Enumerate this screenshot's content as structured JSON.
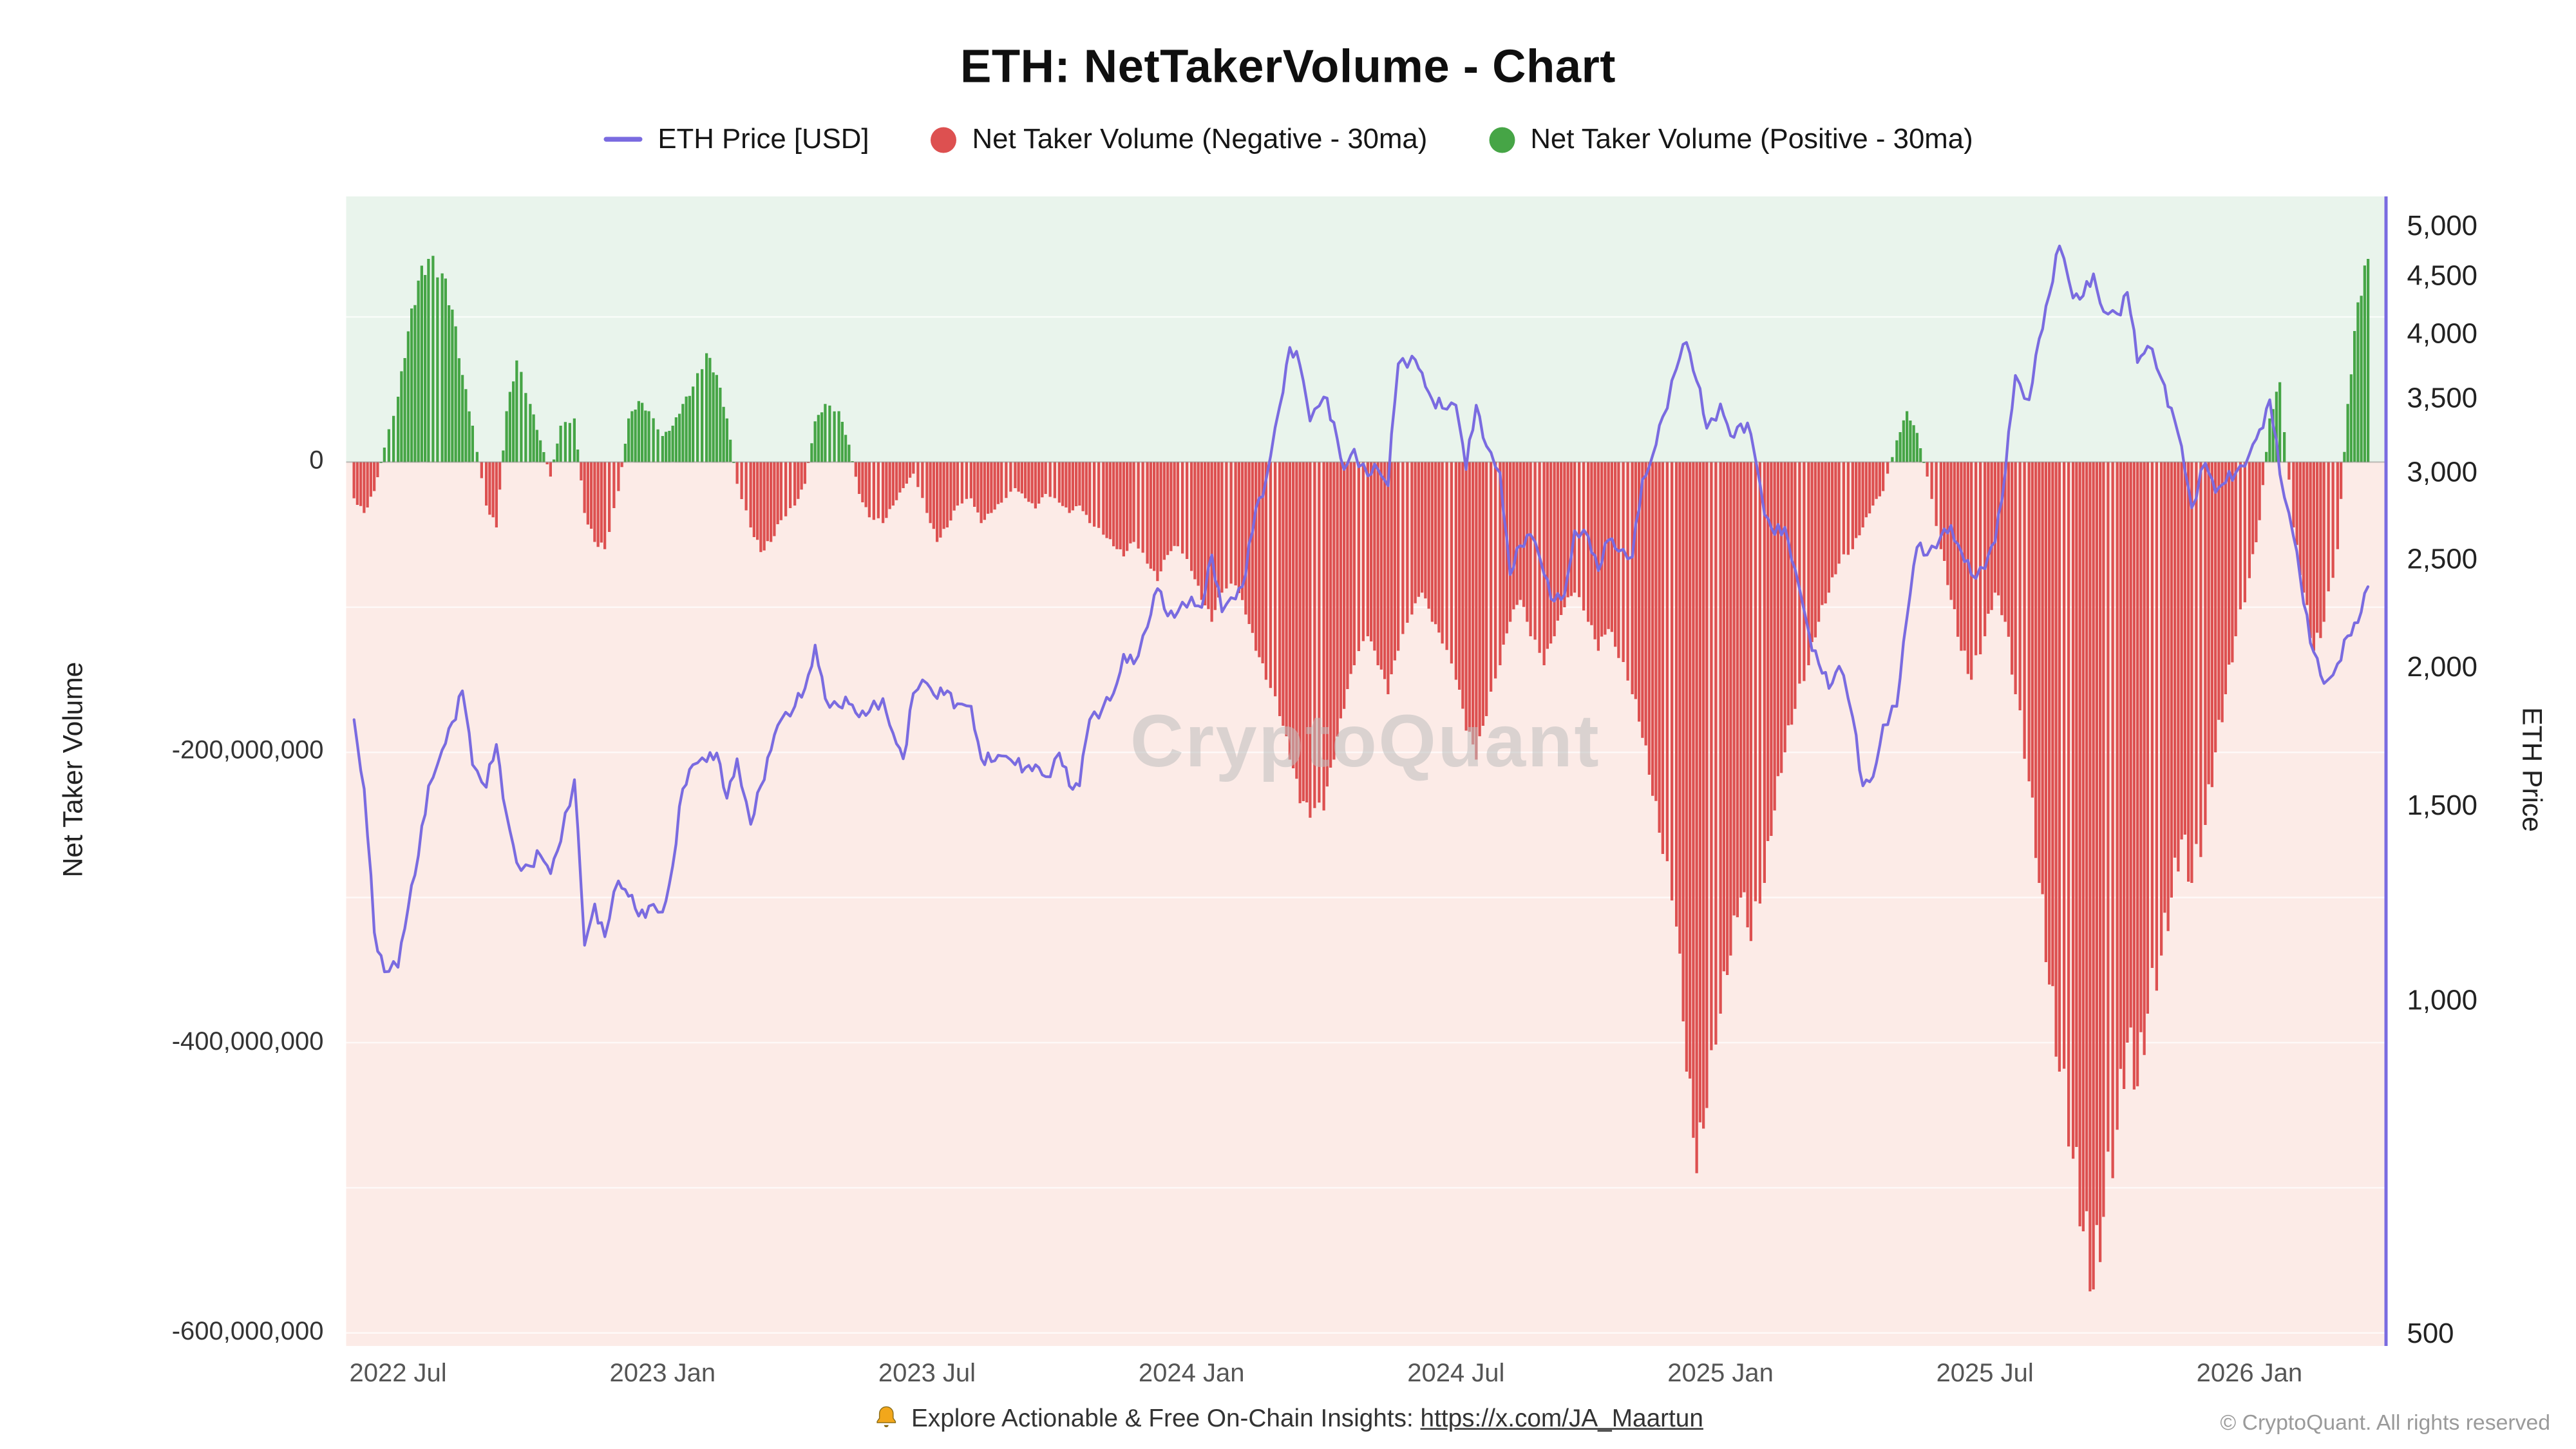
{
  "header": {
    "title": "ETH: NetTakerVolume - Chart",
    "legend": [
      {
        "label": "ETH Price [USD]",
        "color": "#7a6be0",
        "type": "line"
      },
      {
        "label": "Net Taker Volume (Negative - 30ma)",
        "color": "#dd5050",
        "type": "circle"
      },
      {
        "label": "Net Taker Volume (Positive - 30ma)",
        "color": "#46a546",
        "type": "circle"
      }
    ]
  },
  "watermark": "CryptoQuant",
  "footer": {
    "bell_icon": "bell-icon",
    "text": "Explore Actionable & Free On-Chain Insights: ",
    "link_text": "https://x.com/JA_Maartun",
    "copyright": "© CryptoQuant. All rights reserved"
  },
  "colors": {
    "price_line": "#7a6be0",
    "bar_negative": "#dd5050",
    "bar_positive": "#46a546",
    "bg_positive": "#e9f4ec",
    "bg_negative": "#fcebe7",
    "right_axis_line": "#7a6be0",
    "watermark": "#bfbfbf"
  },
  "chart_data": {
    "type": "bar+line",
    "title": "ETH: NetTakerVolume - Chart",
    "series": [
      {
        "name": "ETH Price [USD]",
        "type": "line",
        "axis": "right",
        "color": "#7a6be0"
      },
      {
        "name": "Net Taker Volume (Negative - 30ma)",
        "type": "bar",
        "axis": "left",
        "color": "#dd5050"
      },
      {
        "name": "Net Taker Volume (Positive - 30ma)",
        "type": "bar",
        "axis": "left",
        "color": "#46a546"
      }
    ],
    "left_axis": {
      "title": "Net Taker Volume",
      "scale": "linear",
      "tick_values": [
        0,
        -200000000,
        -400000000,
        -600000000
      ],
      "tick_labels": [
        "0",
        "-200,000,000",
        "-400,000,000",
        "-600,000,000"
      ],
      "domain": [
        -609000000,
        183000000
      ]
    },
    "right_axis": {
      "title": "ETH Price",
      "scale": "log",
      "tick_values": [
        5000,
        4500,
        4000,
        3500,
        3000,
        2500,
        2000,
        1500,
        1000,
        500
      ],
      "tick_labels": [
        "5,000",
        "4,500",
        "4,000",
        "3,500",
        "3,000",
        "2,500",
        "2,000",
        "1,500",
        "1,000",
        "500"
      ],
      "domain": [
        487,
        5310
      ]
    },
    "x_axis": {
      "tick_labels": [
        "2022 Jul",
        "2023 Jan",
        "2023 Jul",
        "2024 Jan",
        "2024 Jul",
        "2025 Jan",
        "2025 Jul",
        "2026 Jan"
      ],
      "tick_dates": [
        "2022-07-01",
        "2023-01-01",
        "2023-07-01",
        "2024-01-01",
        "2024-07-01",
        "2025-01-01",
        "2025-07-01",
        "2026-01-01"
      ],
      "domain": [
        "2022-05-26",
        "2026-04-04"
      ],
      "grid": false
    },
    "samples": {
      "note": "weekly samples, 4 per month on days 1/8/15/22, from 2022-06 through 2026-03; volume is 30-day moving average in millions of USD",
      "start_month": "2022-06",
      "n_months": 46,
      "sample_days": [
        1,
        8,
        15,
        22
      ],
      "eth_price_usd": [
        [
          1790,
          1550,
          1150,
          1060
        ],
        [
          1070,
          1210,
          1350,
          1560
        ],
        [
          1680,
          1780,
          1900,
          1630
        ],
        [
          1555,
          1700,
          1470,
          1330
        ],
        [
          1320,
          1350,
          1300,
          1390
        ],
        [
          1580,
          1120,
          1220,
          1140
        ],
        [
          1280,
          1240,
          1190,
          1215
        ],
        [
          1200,
          1320,
          1550,
          1630
        ],
        [
          1640,
          1670,
          1520,
          1650
        ],
        [
          1440,
          1560,
          1680,
          1790
        ],
        [
          1840,
          1910,
          2090,
          1870
        ],
        [
          1840,
          1850,
          1800,
          1820
        ],
        [
          1870,
          1740,
          1650,
          1890
        ],
        [
          1930,
          1870,
          1900,
          1850
        ],
        [
          1840,
          1650,
          1640,
          1660
        ],
        [
          1630,
          1620,
          1630,
          1590
        ],
        [
          1670,
          1560,
          1560,
          1790
        ],
        [
          1840,
          1890,
          2050,
          2010
        ],
        [
          2170,
          2350,
          2220,
          2240
        ],
        [
          2310,
          2260,
          2520,
          2240
        ],
        [
          2300,
          2420,
          2780,
          2950
        ],
        [
          3430,
          3880,
          3740,
          3330
        ],
        [
          3500,
          3320,
          3010,
          3140
        ],
        [
          2970,
          3010,
          2910,
          3750
        ],
        [
          3810,
          3680,
          3480,
          3420
        ],
        [
          3440,
          3010,
          3440,
          3160
        ],
        [
          2990,
          2420,
          2570,
          2630
        ],
        [
          2420,
          2290,
          2320,
          2650
        ],
        [
          2620,
          2440,
          2600,
          2540
        ],
        [
          2510,
          2950,
          3100,
          3360
        ],
        [
          3710,
          3920,
          3620,
          3280
        ],
        [
          3450,
          3230,
          3310,
          3240
        ],
        [
          2740,
          2630,
          2670,
          2450
        ],
        [
          2150,
          2010,
          1910,
          2000
        ],
        [
          1800,
          1560,
          1590,
          1770
        ],
        [
          1840,
          2210,
          2560,
          2520
        ],
        [
          2620,
          2680,
          2540,
          2420
        ],
        [
          2450,
          2590,
          2990,
          3660
        ],
        [
          3480,
          3950,
          4330,
          4790
        ],
        [
          4300,
          4320,
          4520,
          4180
        ],
        [
          4160,
          4350,
          3760,
          3890
        ],
        [
          3640,
          3420,
          3160,
          2780
        ],
        [
          3050,
          2870,
          2930,
          2990
        ],
        [
          3110,
          3270,
          3480,
          2980
        ],
        [
          2620,
          2280,
          2060,
          1930
        ],
        [
          2010,
          2130,
          2190,
          2360
        ]
      ],
      "net_taker_volume_30ma_millions_usd": [
        [
          -25,
          -35,
          -20,
          10
        ],
        [
          45,
          90,
          125,
          140
        ],
        [
          130,
          105,
          60,
          25
        ],
        [
          -30,
          -45,
          35,
          70
        ],
        [
          40,
          15,
          -10,
          25
        ],
        [
          30,
          -35,
          -55,
          -60
        ],
        [
          -20,
          30,
          42,
          35
        ],
        [
          18,
          25,
          40,
          52
        ],
        [
          75,
          60,
          30,
          -15
        ],
        [
          -45,
          -62,
          -55,
          -40
        ],
        [
          -30,
          -15,
          28,
          40
        ],
        [
          35,
          12,
          -22,
          -38
        ],
        [
          -42,
          -30,
          -18,
          -8
        ],
        [
          -35,
          -55,
          -45,
          -30
        ],
        [
          -25,
          -42,
          -35,
          -28
        ],
        [
          -18,
          -25,
          -32,
          -22
        ],
        [
          -28,
          -35,
          -30,
          -42
        ],
        [
          -50,
          -58,
          -65,
          -55
        ],
        [
          -70,
          -82,
          -64,
          -58
        ],
        [
          -75,
          -95,
          -110,
          -90
        ],
        [
          -85,
          -105,
          -130,
          -150
        ],
        [
          -175,
          -205,
          -235,
          -245
        ],
        [
          -240,
          -205,
          -170,
          -140
        ],
        [
          -120,
          -140,
          -160,
          -130
        ],
        [
          -105,
          -90,
          -110,
          -125
        ],
        [
          -150,
          -185,
          -205,
          -175
        ],
        [
          -140,
          -110,
          -95,
          -120
        ],
        [
          -140,
          -120,
          -100,
          -90
        ],
        [
          -110,
          -130,
          -115,
          -135
        ],
        [
          -160,
          -190,
          -230,
          -270
        ],
        [
          -320,
          -420,
          -490,
          -445
        ],
        [
          -380,
          -340,
          -300,
          -330
        ],
        [
          -290,
          -240,
          -200,
          -170
        ],
        [
          -140,
          -110,
          -90,
          -70
        ],
        [
          -60,
          -45,
          -30,
          -20
        ],
        [
          15,
          35,
          20,
          -10
        ],
        [
          -60,
          -95,
          -130,
          -150
        ],
        [
          -120,
          -90,
          -110,
          -160
        ],
        [
          -220,
          -290,
          -360,
          -420
        ],
        [
          -480,
          -530,
          -570,
          -520
        ],
        [
          -460,
          -400,
          -430,
          -380
        ],
        [
          -340,
          -300,
          -260,
          -290
        ],
        [
          -250,
          -200,
          -160,
          -120
        ],
        [
          -80,
          -40,
          30,
          55
        ],
        [
          -45,
          -90,
          -130,
          -110
        ],
        [
          -60,
          40,
          110,
          140
        ]
      ]
    }
  }
}
